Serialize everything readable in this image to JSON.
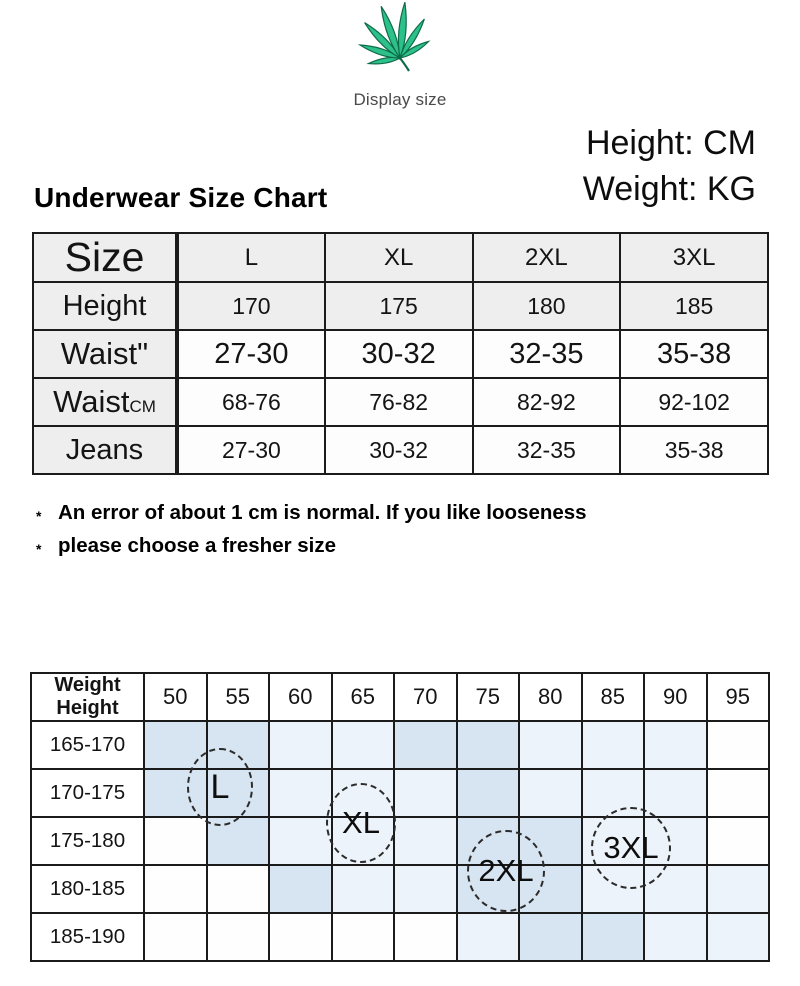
{
  "header": {
    "leaf_icon": "green-leaf-icon",
    "display_size": "Display size",
    "units_height": "Height: CM",
    "units_weight": "Weight: KG",
    "title": "Underwear Size Chart"
  },
  "size_table": {
    "corner": "Size",
    "sizes": [
      "L",
      "XL",
      "2XL",
      "3XL"
    ],
    "rows": [
      {
        "label": "Height",
        "values": [
          "170",
          "175",
          "180",
          "185"
        ]
      },
      {
        "label": "Waist\"",
        "values": [
          "27-30",
          "30-32",
          "32-35",
          "35-38"
        ]
      },
      {
        "label": "Waist",
        "unit": "CM",
        "values": [
          "68-76",
          "76-82",
          "82-92",
          "92-102"
        ]
      },
      {
        "label": "Jeans",
        "values": [
          "27-30",
          "30-32",
          "32-35",
          "35-38"
        ]
      }
    ]
  },
  "notes": [
    {
      "marker": "*",
      "text": "An error of about 1 cm is normal. If you like looseness"
    },
    {
      "marker": "*",
      "text": "please choose a fresher size"
    }
  ],
  "size_matrix": {
    "corner_top": "Weight",
    "corner_bottom": "Height",
    "weights": [
      "50",
      "55",
      "60",
      "65",
      "70",
      "75",
      "80",
      "85",
      "90",
      "95"
    ],
    "rows": [
      {
        "height": "165-170",
        "shade": [
          2,
          2,
          1,
          1,
          2,
          2,
          1,
          1,
          1,
          0
        ]
      },
      {
        "height": "170-175",
        "shade": [
          2,
          2,
          1,
          1,
          1,
          2,
          1,
          1,
          1,
          0
        ]
      },
      {
        "height": "175-180",
        "shade": [
          0,
          2,
          1,
          1,
          1,
          2,
          2,
          1,
          1,
          0
        ]
      },
      {
        "height": "180-185",
        "shade": [
          0,
          0,
          2,
          1,
          1,
          2,
          2,
          1,
          1,
          1
        ]
      },
      {
        "height": "185-190",
        "shade": [
          0,
          0,
          0,
          0,
          0,
          1,
          2,
          2,
          1,
          1
        ]
      }
    ],
    "shade_colors": {
      "0": "#fefefe",
      "1": "#edf3fa",
      "2": "#d7e4f2"
    },
    "leaf_color": "#2cc08a",
    "circles": [
      {
        "label": "L"
      },
      {
        "label": "XL"
      },
      {
        "label": "2XL"
      },
      {
        "label": "3XL"
      }
    ]
  }
}
